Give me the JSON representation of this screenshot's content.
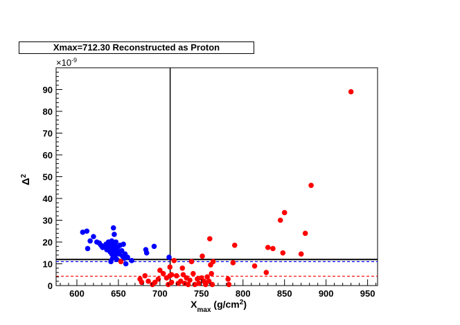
{
  "chart_data": {
    "type": "scatter",
    "title": "Xmax=712.30  Reconstructed as Proton",
    "xlabel": {
      "base": "X",
      "sub": "max",
      "unit": " (g/cm",
      "sup": "2",
      "close": ")"
    },
    "ylabel": {
      "base": "Δ",
      "sup": "2"
    },
    "y_multiplier": {
      "prefix": "×10",
      "exp": "-9"
    },
    "xlim": [
      575,
      962
    ],
    "ylim": [
      0,
      100
    ],
    "xticks": [
      600,
      650,
      700,
      750,
      800,
      850,
      900,
      950
    ],
    "yticks": [
      0,
      10,
      20,
      30,
      40,
      50,
      60,
      70,
      80,
      90
    ],
    "grid": false,
    "vline_x": 712.3,
    "hline_y": 12.0,
    "dashed_lines": [
      {
        "y": 11.0,
        "color": "#0000ff"
      },
      {
        "y": 4.3,
        "color": "#ff0000"
      }
    ],
    "series": [
      {
        "color": "#0000ff",
        "points": [
          [
            607,
            24.5
          ],
          [
            612,
            25.0
          ],
          [
            613,
            17.0
          ],
          [
            616,
            20.5
          ],
          [
            620,
            22.5
          ],
          [
            624,
            20.0
          ],
          [
            627,
            19.5
          ],
          [
            629,
            18.5
          ],
          [
            631,
            17.5
          ],
          [
            633,
            18.0
          ],
          [
            635,
            19.0
          ],
          [
            636,
            16.5
          ],
          [
            637,
            18.5
          ],
          [
            638,
            20.0
          ],
          [
            639,
            17.0
          ],
          [
            640,
            15.5
          ],
          [
            640,
            19.5
          ],
          [
            641,
            18.0
          ],
          [
            641,
            11.0
          ],
          [
            642,
            14.5
          ],
          [
            642,
            20.5
          ],
          [
            643,
            16.5
          ],
          [
            643,
            12.5
          ],
          [
            644,
            19.0
          ],
          [
            644,
            26.5
          ],
          [
            645,
            23.5
          ],
          [
            645,
            17.5
          ],
          [
            645,
            15.0
          ],
          [
            646,
            14.0
          ],
          [
            646,
            13.0
          ],
          [
            647,
            20.0
          ],
          [
            647,
            18.0
          ],
          [
            648,
            16.0
          ],
          [
            648,
            12.0
          ],
          [
            649,
            17.5
          ],
          [
            650,
            15.5
          ],
          [
            651,
            14.5
          ],
          [
            652,
            18.5
          ],
          [
            654,
            16.0
          ],
          [
            655,
            13.5
          ],
          [
            656,
            19.0
          ],
          [
            657,
            12.5
          ],
          [
            658,
            14.5
          ],
          [
            659,
            10.0
          ],
          [
            661,
            13.0
          ],
          [
            666,
            11.5
          ],
          [
            683,
            16.5
          ],
          [
            684,
            15.0
          ],
          [
            693,
            18.0
          ],
          [
            711,
            13.0
          ]
        ]
      },
      {
        "color": "#ff0000",
        "points": [
          [
            653,
            11.0
          ],
          [
            676,
            3.0
          ],
          [
            678,
            1.5
          ],
          [
            682,
            4.5
          ],
          [
            686,
            2.0
          ],
          [
            691,
            0.5
          ],
          [
            694,
            1.5
          ],
          [
            698,
            3.0
          ],
          [
            700,
            7.0
          ],
          [
            704,
            5.5
          ],
          [
            708,
            3.5
          ],
          [
            710,
            0.5
          ],
          [
            712,
            4.5
          ],
          [
            712,
            8.5
          ],
          [
            714,
            5.0
          ],
          [
            714,
            1.5
          ],
          [
            717,
            11.5
          ],
          [
            720,
            4.5
          ],
          [
            722,
            1.0
          ],
          [
            725,
            2.0
          ],
          [
            727,
            8.0
          ],
          [
            728,
            5.0
          ],
          [
            730,
            1.0
          ],
          [
            732,
            3.5
          ],
          [
            734,
            0.5
          ],
          [
            736,
            2.5
          ],
          [
            738,
            11.0
          ],
          [
            740,
            5.5
          ],
          [
            742,
            0.5
          ],
          [
            745,
            3.0
          ],
          [
            747,
            1.0
          ],
          [
            750,
            3.5
          ],
          [
            751,
            13.5
          ],
          [
            753,
            2.0
          ],
          [
            755,
            0.5
          ],
          [
            757,
            4.0
          ],
          [
            759,
            2.0
          ],
          [
            760,
            21.5
          ],
          [
            761,
            9.5
          ],
          [
            762,
            5.5
          ],
          [
            763,
            0.5
          ],
          [
            764,
            11.0
          ],
          [
            782,
            3.0
          ],
          [
            783,
            0.5
          ],
          [
            788,
            10.5
          ],
          [
            790,
            18.5
          ],
          [
            814,
            9.0
          ],
          [
            828,
            6.0
          ],
          [
            830,
            17.5
          ],
          [
            836,
            17.0
          ],
          [
            845,
            30.0
          ],
          [
            848,
            15.0
          ],
          [
            850,
            33.5
          ],
          [
            870,
            14.5
          ],
          [
            875,
            24.0
          ],
          [
            882,
            46.0
          ],
          [
            930,
            89.0
          ]
        ]
      }
    ]
  }
}
